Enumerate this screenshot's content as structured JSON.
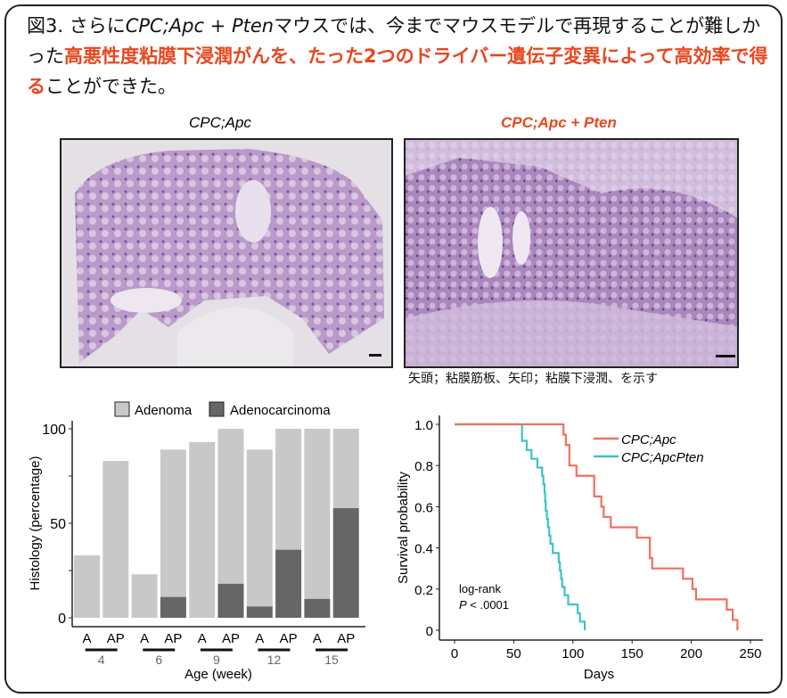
{
  "title": {
    "prefix": "図3. さらに",
    "genotype": "CPC;Apc + Pten",
    "part1": "マウスでは、今までマウスモデルで再現することが難しかった",
    "highlight": "高悪性度粘膜下浸潤がんを、たった2つのドライバー遺伝子変異によって高効率で得る",
    "part2": "ことができた。"
  },
  "images": [
    {
      "label": "CPC;Apc",
      "color": "#111111"
    },
    {
      "label": "CPC;Apc + Pten",
      "color": "#e8471f"
    }
  ],
  "caption": "矢頭；粘膜筋板、矢印；粘膜下浸潤、を示す",
  "chart_data": [
    {
      "type": "bar",
      "stacked": true,
      "ylabel": "Histology (percentage)",
      "xlabel": "Age (week)",
      "ylim": [
        0,
        100
      ],
      "yticks": [
        "0",
        "50",
        "100"
      ],
      "legend": [
        "Adenoma",
        "Adenocarcinoma"
      ],
      "legend_position": "top",
      "colors": {
        "Adenoma": "#c8c8c8",
        "Adenocarcinoma": "#666666"
      },
      "categories": [
        "A",
        "AP",
        "A",
        "AP",
        "A",
        "AP",
        "A",
        "AP",
        "A",
        "AP"
      ],
      "groups": [
        "4",
        "6",
        "9",
        "12",
        "15"
      ],
      "series": [
        {
          "name": "Adenocarcinoma",
          "values": [
            0,
            0,
            0,
            11,
            0,
            18,
            6,
            36,
            10,
            58
          ]
        },
        {
          "name": "Adenoma",
          "values": [
            33,
            83,
            23,
            78,
            93,
            82,
            83,
            64,
            90,
            42
          ]
        }
      ]
    },
    {
      "type": "line",
      "step": true,
      "xlabel": "Days",
      "ylabel": "Survival probability",
      "xlim": [
        0,
        250
      ],
      "ylim": [
        0,
        1
      ],
      "xticks": [
        "0",
        "50",
        "100",
        "150",
        "200",
        "250"
      ],
      "yticks": [
        "0",
        "0.2",
        "0.4",
        "0.6",
        "0.8",
        "1.0"
      ],
      "legend_position": "top-right",
      "annotation": {
        "line1": "log-rank",
        "p": "P",
        "line2": " < .0001"
      },
      "series": [
        {
          "name": "CPC;Apc",
          "color": "#f07060",
          "x": [
            0,
            92,
            94,
            97,
            103,
            118,
            124,
            126,
            132,
            154,
            165,
            167,
            193,
            201,
            204,
            230,
            235,
            239
          ],
          "y": [
            1,
            0.95,
            0.9,
            0.8,
            0.75,
            0.65,
            0.6,
            0.55,
            0.5,
            0.45,
            0.35,
            0.3,
            0.25,
            0.2,
            0.15,
            0.1,
            0.05,
            0
          ]
        },
        {
          "name": "CPC;ApcPten",
          "color": "#3fc3c3",
          "x": [
            0,
            57,
            61,
            65,
            70,
            74,
            75,
            76,
            76.5,
            77,
            78,
            79,
            80,
            81,
            83,
            88,
            89,
            90,
            91,
            93,
            96,
            104,
            106,
            110
          ],
          "y": [
            1,
            0.92,
            0.875,
            0.833,
            0.79,
            0.75,
            0.71,
            0.67,
            0.625,
            0.58,
            0.54,
            0.5,
            0.46,
            0.42,
            0.375,
            0.33,
            0.29,
            0.25,
            0.21,
            0.17,
            0.125,
            0.083,
            0.042,
            0
          ]
        }
      ]
    }
  ]
}
